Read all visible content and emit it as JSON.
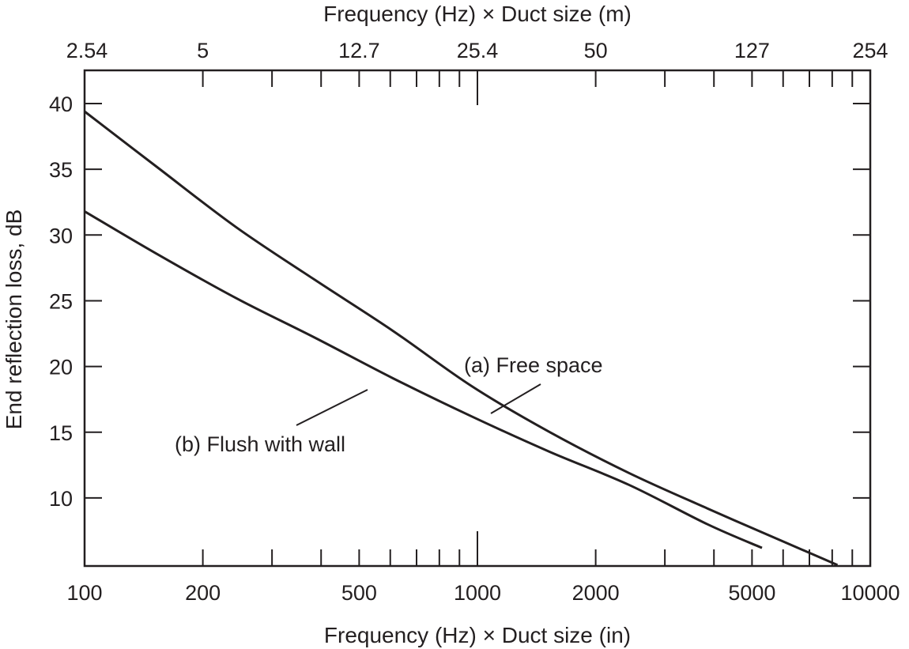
{
  "chart_data": {
    "type": "line",
    "title": "",
    "xlabel": "Frequency (Hz) × Duct size (in)",
    "x2label": "Frequency (Hz) × Duct size (m)",
    "ylabel": "End reflection loss, dB",
    "xscale": "log",
    "xlim": [
      100,
      10000
    ],
    "ylim": [
      4.9,
      42.5
    ],
    "grid": false,
    "x_ticks_labeled": [
      100,
      200,
      500,
      1000,
      2000,
      5000,
      10000
    ],
    "x_tick_labels": [
      "100",
      "200",
      "500",
      "1000",
      "2000",
      "5000",
      "10000"
    ],
    "x2_tick_labels": [
      "2.54",
      "5",
      "12.7",
      "25.4",
      "50",
      "127",
      "254"
    ],
    "y_ticks": [
      10,
      15,
      20,
      25,
      30,
      35,
      40
    ],
    "y_tick_labels": [
      "10",
      "15",
      "20",
      "25",
      "30",
      "35",
      "40"
    ],
    "series": [
      {
        "name": "(a) Free space",
        "x": [
          100,
          154,
          243,
          385,
          610,
          967,
          1530,
          2430,
          3850,
          6090,
          8250
        ],
        "values": [
          39.4,
          35.1,
          30.6,
          26.6,
          22.7,
          18.5,
          15.0,
          11.9,
          9.2,
          6.6,
          4.9
        ]
      },
      {
        "name": "(b) Flush with wall",
        "x": [
          100,
          154,
          243,
          385,
          610,
          967,
          1530,
          2430,
          3850,
          5300
        ],
        "values": [
          31.8,
          28.5,
          25.2,
          22.2,
          19.1,
          16.2,
          13.5,
          11.0,
          8.0,
          6.2
        ]
      }
    ],
    "annotations": [
      {
        "text": "(a) Free space",
        "series": 0
      },
      {
        "text": "(b) Flush with wall",
        "series": 1
      }
    ]
  }
}
